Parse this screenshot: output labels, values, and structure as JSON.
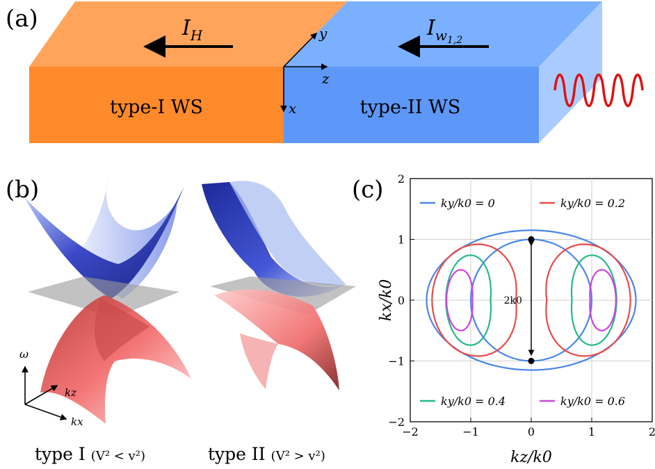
{
  "panels": {
    "a": {
      "label": "(a)"
    },
    "b": {
      "label": "(b)"
    },
    "c": {
      "label": "(c)"
    }
  },
  "diagram": {
    "left_material": "type-I WS",
    "right_material": "type-II WS",
    "left_current": "I",
    "left_current_sub": "H",
    "right_current": "I",
    "right_current_sub": "w",
    "right_current_sub2": "1,2",
    "axis_x": "x",
    "axis_y": "y",
    "axis_z": "z",
    "colors": {
      "type_I_front": "#ff8a2b",
      "type_I_top": "#ffa45a",
      "type_II_front": "#5d97f7",
      "type_II_top": "#7ab0ff",
      "type_II_side": "#a9cbff",
      "wave": "#e01010"
    },
    "wave_icon": "sinusoidal-wave-icon"
  },
  "surfaces": {
    "type1_caption": "type I",
    "type1_condition": "(V² < v²)",
    "type2_caption": "type II",
    "type2_condition": "(V² > v²)",
    "axis_omega": "ω",
    "axis_kz": "kz",
    "axis_kx": "kx",
    "colors": {
      "upper_band": "#2233aa",
      "lower_band": "#e84848",
      "plane": "#9a9a9a"
    }
  },
  "chart_data": {
    "type": "line",
    "xlabel": "kz/k0",
    "ylabel": "kx/k0",
    "xlim": [
      -2,
      2
    ],
    "ylim": [
      -2,
      2
    ],
    "xticks": [
      "−2",
      "−1",
      "0",
      "1",
      "2"
    ],
    "yticks": [
      "2",
      "1",
      "0",
      "−1",
      "−2"
    ],
    "grid": true,
    "annotation": "2k0",
    "points": [
      {
        "x": 0,
        "y": 1
      },
      {
        "x": 0,
        "y": -1
      }
    ],
    "legend": [
      {
        "name": "ky/k0 = 0",
        "color": "#4a86e8",
        "position": "top-left"
      },
      {
        "name": "ky/k0 = 0.2",
        "color": "#e84a4a",
        "position": "top-right"
      },
      {
        "name": "ky/k0 = 0.4",
        "color": "#26b88a",
        "position": "bottom-left"
      },
      {
        "name": "ky/k0 = 0.6",
        "color": "#cc44e0",
        "position": "bottom-right"
      }
    ],
    "series": [
      {
        "name": "ky/k0 = 0",
        "color": "#4a86e8",
        "x": [
          -1.73,
          -1.0,
          0,
          1.0,
          1.73,
          1.0,
          0,
          -1.0
        ],
        "y": [
          0,
          0.98,
          1.0,
          0.98,
          0,
          -0.98,
          -1.0,
          -0.98
        ]
      },
      {
        "name": "ky/k0 = 0.2",
        "color": "#e84a4a",
        "x": [
          -1.64,
          -1.0,
          -0.12,
          0.12,
          1.0,
          1.64
        ],
        "y": [
          0,
          0.92,
          0.85,
          0.85,
          0.92,
          0
        ]
      },
      {
        "name": "ky/k0 = 0.4",
        "color": "#26b88a",
        "x": [
          -1.41,
          -1.0,
          -0.6,
          0.6,
          1.0,
          1.41
        ],
        "y": [
          0,
          0.74,
          0.6,
          0.6,
          0.74,
          0
        ]
      },
      {
        "name": "ky/k0 = 0.6",
        "color": "#cc44e0",
        "x": [
          -1.4,
          -1.0,
          -0.93,
          0.93,
          1.0,
          1.4
        ],
        "y": [
          0,
          0.5,
          0.3,
          0.3,
          0.5,
          0
        ]
      }
    ]
  }
}
